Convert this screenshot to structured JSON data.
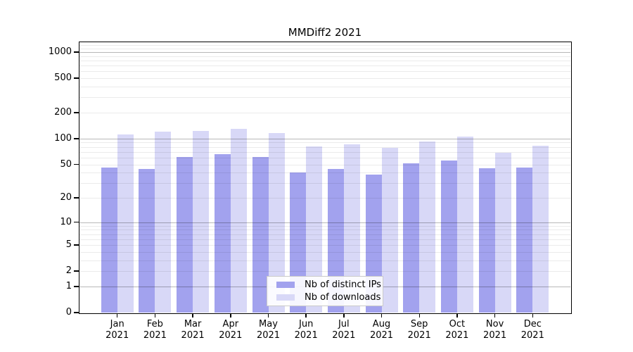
{
  "chart_data": {
    "type": "bar",
    "title": "MMDiff2 2021",
    "categories": [
      "Jan",
      "Feb",
      "Mar",
      "Apr",
      "May",
      "Jun",
      "Jul",
      "Aug",
      "Sep",
      "Oct",
      "Nov",
      "Dec"
    ],
    "category_sublabel": "2021",
    "series": [
      {
        "name": "Nb of distinct IPs",
        "color": "#a2a2ee",
        "values": [
          46,
          44,
          61,
          66,
          61,
          40,
          44,
          38,
          51,
          56,
          45,
          46
        ]
      },
      {
        "name": "Nb of downloads",
        "color": "#d8d8f7",
        "values": [
          112,
          120,
          122,
          129,
          117,
          81,
          86,
          78,
          93,
          106,
          68,
          82
        ]
      }
    ],
    "xlabel": "",
    "ylabel": "",
    "y_scale": "log1p",
    "y_ticks": [
      0,
      1,
      2,
      5,
      10,
      20,
      50,
      100,
      200,
      500,
      1000
    ],
    "ylim": [
      0,
      1300
    ],
    "grid": "on",
    "legend_position": "inside-bottom-center",
    "colors": {
      "axis": "#000000",
      "major_grid": "#b8b8b8",
      "minor_grid": "#ebebeb",
      "legend_border": "#c9c9c9",
      "background": "#ffffff"
    }
  }
}
